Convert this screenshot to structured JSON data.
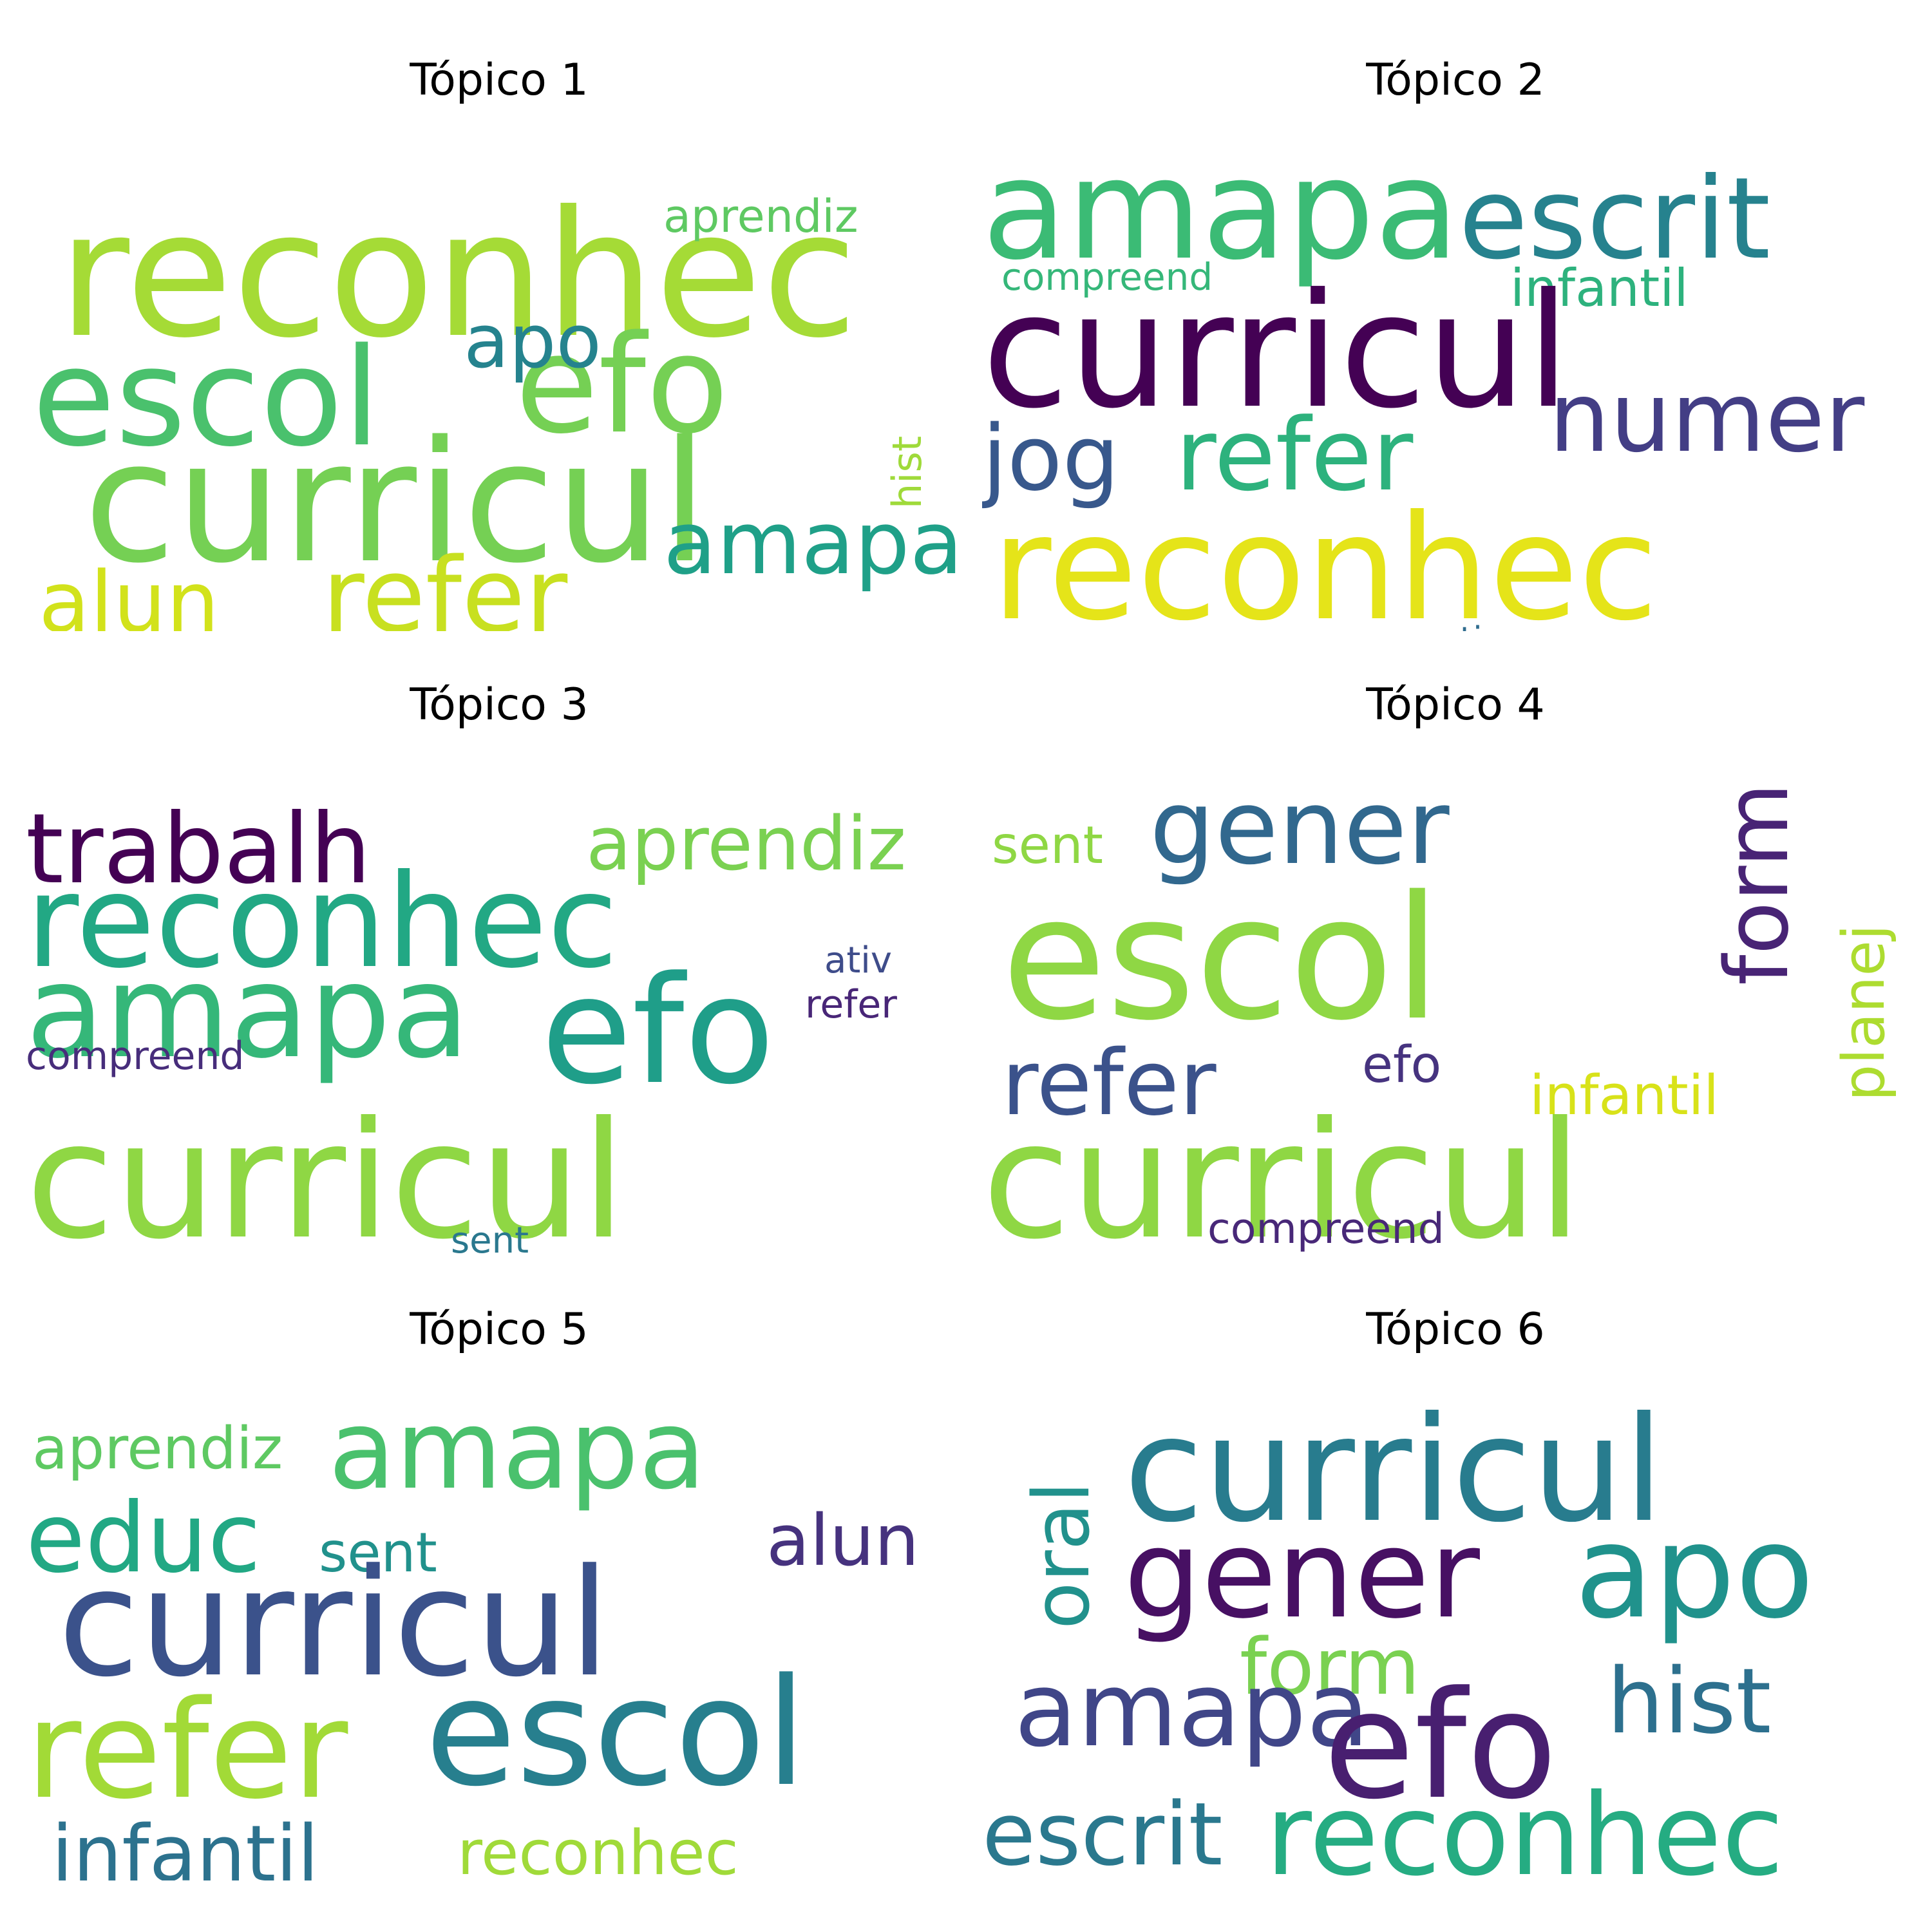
{
  "chart_data": [
    {
      "type": "wordcloud",
      "title": "Tópico 1",
      "words": [
        {
          "text": "reconhec",
          "color": "#a5db36"
        },
        {
          "text": "escol",
          "color": "#4ac16d"
        },
        {
          "text": "efo",
          "color": "#75d054"
        },
        {
          "text": "curricul",
          "color": "#75d054"
        },
        {
          "text": "apo",
          "color": "#25838e"
        },
        {
          "text": "aprendiz",
          "color": "#5ec962"
        },
        {
          "text": "hist",
          "color": "#9fda3a"
        },
        {
          "text": "alun",
          "color": "#d2e21b"
        },
        {
          "text": "refer",
          "color": "#c8e020"
        },
        {
          "text": "amapa",
          "color": "#1fa088"
        }
      ]
    },
    {
      "type": "wordcloud",
      "title": "Tópico 2",
      "words": [
        {
          "text": "amapa",
          "color": "#3bbb75"
        },
        {
          "text": "escrit",
          "color": "#26828e"
        },
        {
          "text": "compreend",
          "color": "#35b779"
        },
        {
          "text": "infantil",
          "color": "#2db27d"
        },
        {
          "text": "curricul",
          "color": "#440154"
        },
        {
          "text": "jog",
          "color": "#38588c"
        },
        {
          "text": "refer",
          "color": "#2db27d"
        },
        {
          "text": "numer",
          "color": "#433e85"
        },
        {
          "text": "reconhec",
          "color": "#e5e419"
        },
        {
          "text": "ativ",
          "color": "#2f6c8e"
        }
      ]
    },
    {
      "type": "wordcloud",
      "title": "Tópico 3",
      "words": [
        {
          "text": "trabalh",
          "color": "#440154"
        },
        {
          "text": "aprendiz",
          "color": "#7ad151"
        },
        {
          "text": "reconhec",
          "color": "#22a884"
        },
        {
          "text": "amapa",
          "color": "#35b779"
        },
        {
          "text": "efo",
          "color": "#1f9e89"
        },
        {
          "text": "ativ",
          "color": "#3e4c8a"
        },
        {
          "text": "refer",
          "color": "#482677"
        },
        {
          "text": "compreend",
          "color": "#472d7b"
        },
        {
          "text": "curricul",
          "color": "#8fd744"
        },
        {
          "text": "sent",
          "color": "#2a788e"
        }
      ]
    },
    {
      "type": "wordcloud",
      "title": "Tópico 4",
      "words": [
        {
          "text": "gener",
          "color": "#31688e"
        },
        {
          "text": "sent",
          "color": "#8fd744"
        },
        {
          "text": "escol",
          "color": "#8fd744"
        },
        {
          "text": "form",
          "color": "#482475"
        },
        {
          "text": "planej",
          "color": "#addc30"
        },
        {
          "text": "refer",
          "color": "#3b528b"
        },
        {
          "text": "efo",
          "color": "#46337f"
        },
        {
          "text": "infantil",
          "color": "#d8e219"
        },
        {
          "text": "curricul",
          "color": "#8fd744"
        },
        {
          "text": "compreend",
          "color": "#482878"
        }
      ]
    },
    {
      "type": "wordcloud",
      "title": "Tópico 5",
      "words": [
        {
          "text": "aprendiz",
          "color": "#5ec962"
        },
        {
          "text": "amapa",
          "color": "#4ac16d"
        },
        {
          "text": "educ",
          "color": "#22a884"
        },
        {
          "text": "sent",
          "color": "#21918c"
        },
        {
          "text": "alun",
          "color": "#46327e"
        },
        {
          "text": "curricul",
          "color": "#3b528b"
        },
        {
          "text": "refer",
          "color": "#a2da37"
        },
        {
          "text": "escol",
          "color": "#277f8e"
        },
        {
          "text": "infantil",
          "color": "#2c728e"
        },
        {
          "text": "reconhec",
          "color": "#a0da39"
        }
      ]
    },
    {
      "type": "wordcloud",
      "title": "Tópico 6",
      "words": [
        {
          "text": "curricul",
          "color": "#287c8e"
        },
        {
          "text": "oral",
          "color": "#21918c"
        },
        {
          "text": "gener",
          "color": "#471063"
        },
        {
          "text": "apo",
          "color": "#20928c"
        },
        {
          "text": "form",
          "color": "#7ad151"
        },
        {
          "text": "amapa",
          "color": "#404688"
        },
        {
          "text": "efo",
          "color": "#481f70"
        },
        {
          "text": "hist",
          "color": "#2d708e"
        },
        {
          "text": "escrit",
          "color": "#2a788e"
        },
        {
          "text": "reconhec",
          "color": "#25ac82"
        }
      ]
    }
  ]
}
